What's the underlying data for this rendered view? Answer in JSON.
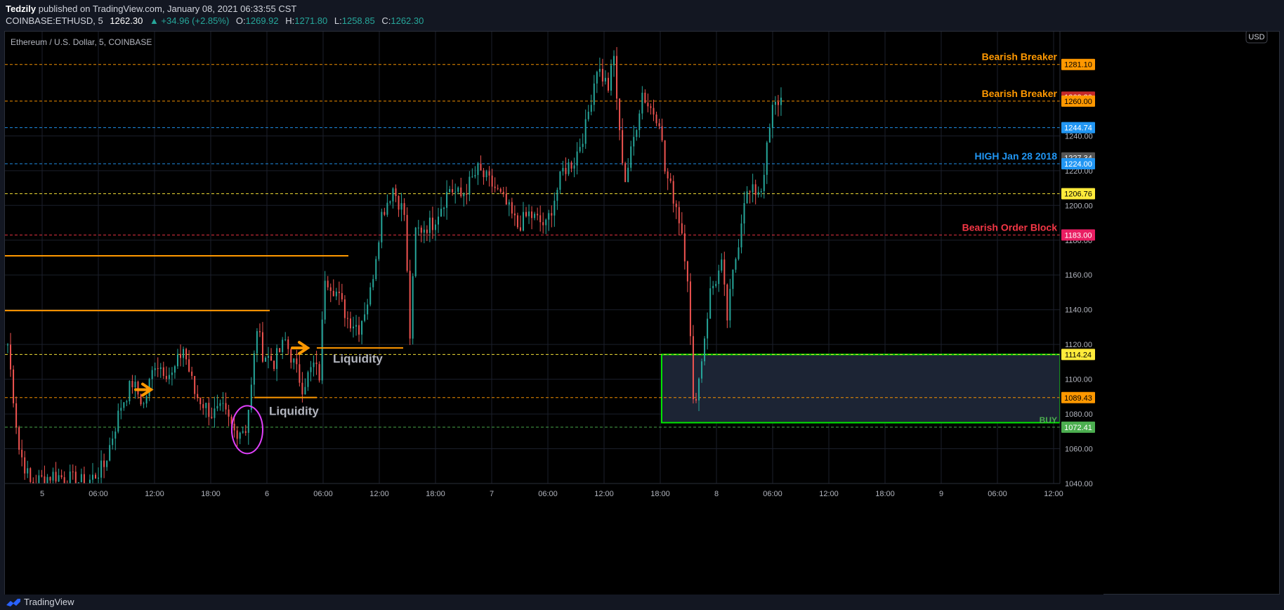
{
  "publish": {
    "author": "Tedzily",
    "text": " published on TradingView.com, January 08, 2021 06:33:55 CST"
  },
  "ohlc": {
    "symbol": "COINBASE:ETHUSD, 5",
    "last": "1262.30",
    "change": "▲ +34.96 (+2.85%)",
    "o_label": "O:",
    "o": "1269.92",
    "h_label": "H:",
    "h": "1271.80",
    "l_label": "L:",
    "l": "1258.85",
    "c_label": "C:",
    "c": "1262.30"
  },
  "footer": {
    "brand": "TradingView"
  },
  "colors": {
    "up": "#26a69a",
    "down": "#ef5350",
    "orange": "#ff9800",
    "blue": "#2196f3",
    "yellow": "#ffeb3b",
    "red": "#f23645",
    "green": "#4caf50",
    "magenta": "#e040fb",
    "zone_fill": "#1c2434",
    "zone_border": "#00e600",
    "grid": "#1b1f2b"
  },
  "chart_data": {
    "type": "candlestick",
    "title": "Ethereum / U.S. Dollar, 5, COINBASE",
    "currency": "USD",
    "ylim": [
      1040,
      1300
    ],
    "y_ticks": [
      1040,
      1060,
      1080,
      1100,
      1120,
      1140,
      1160,
      1180,
      1200,
      1220,
      1240
    ],
    "x_ticks": [
      "5",
      "06:00",
      "12:00",
      "18:00",
      "6",
      "06:00",
      "12:00",
      "18:00",
      "7",
      "06:00",
      "12:00",
      "18:00",
      "8",
      "06:00",
      "12:00",
      "18:00",
      "9",
      "06:00",
      "12:00"
    ],
    "price_path": [
      [
        0,
        1120
      ],
      [
        2,
        1060
      ],
      [
        4,
        1040
      ],
      [
        8,
        1045
      ],
      [
        14,
        1040
      ],
      [
        17,
        1050
      ],
      [
        20,
        1085
      ],
      [
        22,
        1098
      ],
      [
        24,
        1085
      ],
      [
        26,
        1110
      ],
      [
        29,
        1102
      ],
      [
        31,
        1118
      ],
      [
        33,
        1092
      ],
      [
        36,
        1080
      ],
      [
        38,
        1082
      ],
      [
        40,
        1070
      ],
      [
        42,
        1072
      ],
      [
        43,
        1095
      ],
      [
        44,
        1130
      ],
      [
        45,
        1115
      ],
      [
        47,
        1110
      ],
      [
        49,
        1122
      ],
      [
        52,
        1096
      ],
      [
        54,
        1108
      ],
      [
        55,
        1102
      ],
      [
        56,
        1160
      ],
      [
        58,
        1150
      ],
      [
        60,
        1135
      ],
      [
        62,
        1130
      ],
      [
        64,
        1150
      ],
      [
        66,
        1195
      ],
      [
        68,
        1210
      ],
      [
        70,
        1195
      ],
      [
        71,
        1125
      ],
      [
        72,
        1185
      ],
      [
        75,
        1190
      ],
      [
        78,
        1210
      ],
      [
        80,
        1205
      ],
      [
        83,
        1220
      ],
      [
        86,
        1210
      ],
      [
        88,
        1200
      ],
      [
        90,
        1188
      ],
      [
        92,
        1195
      ],
      [
        95,
        1188
      ],
      [
        98,
        1220
      ],
      [
        100,
        1226
      ],
      [
        102,
        1245
      ],
      [
        104,
        1280
      ],
      [
        106,
        1268
      ],
      [
        107,
        1285
      ],
      [
        108,
        1240
      ],
      [
        109,
        1215
      ],
      [
        110,
        1230
      ],
      [
        112,
        1265
      ],
      [
        113,
        1258
      ],
      [
        115,
        1250
      ],
      [
        116,
        1220
      ],
      [
        118,
        1200
      ],
      [
        119,
        1185
      ],
      [
        120,
        1160
      ],
      [
        121,
        1085
      ],
      [
        122,
        1100
      ],
      [
        124,
        1150
      ],
      [
        126,
        1165
      ],
      [
        127,
        1135
      ],
      [
        128,
        1160
      ],
      [
        129,
        1180
      ],
      [
        130,
        1205
      ],
      [
        133,
        1210
      ],
      [
        134,
        1232
      ],
      [
        135,
        1255
      ],
      [
        136,
        1260
      ],
      [
        137,
        1262.3
      ]
    ],
    "horizontal_levels": [
      {
        "price": 1281.1,
        "label": "Bearish Breaker",
        "color": "orange",
        "style": "dashed"
      },
      {
        "price": 1260.0,
        "label": "Bearish Breaker",
        "color": "orange",
        "style": "dashed"
      },
      {
        "price": 1244.74,
        "label": "",
        "color": "blue",
        "style": "dashed"
      },
      {
        "price": 1224.0,
        "label": "HIGH Jan 28 2018",
        "color": "blue",
        "style": "dashed"
      },
      {
        "price": 1206.76,
        "label": "",
        "color": "yellow",
        "style": "dashed"
      },
      {
        "price": 1183.0,
        "label": "Bearish Order Block",
        "color": "red",
        "style": "dashed"
      },
      {
        "price": 1114.24,
        "label": "",
        "color": "yellow",
        "style": "dashed"
      },
      {
        "price": 1089.43,
        "label": "",
        "color": "orange",
        "style": "dashed"
      },
      {
        "price": 1072.41,
        "label": "BUY",
        "color": "green",
        "style": "dashed"
      }
    ],
    "axis_badges": [
      {
        "price": 1281.1,
        "text": "1281.10",
        "bg": "#ff9800",
        "fg": "#000000"
      },
      {
        "price": 1262.3,
        "text": "1262.30",
        "bg": "#c62828",
        "fg": "#ffffff"
      },
      {
        "price": 1260.0,
        "text": "1260.00",
        "bg": "#ff9800",
        "fg": "#000000"
      },
      {
        "price": 1244.74,
        "text": "1244.74",
        "bg": "#2196f3",
        "fg": "#ffffff"
      },
      {
        "price": 1227.34,
        "text": "1227.34",
        "bg": "#555555",
        "fg": "#ffffff"
      },
      {
        "price": 1224.0,
        "text": "1224.00",
        "bg": "#2196f3",
        "fg": "#ffffff"
      },
      {
        "price": 1206.76,
        "text": "1206.76",
        "bg": "#ffeb3b",
        "fg": "#000000"
      },
      {
        "price": 1183.0,
        "text": "1183.00",
        "bg": "#e91e63",
        "fg": "#ffffff"
      },
      {
        "price": 1114.24,
        "text": "1114.24",
        "bg": "#ffeb3b",
        "fg": "#000000"
      },
      {
        "price": 1089.43,
        "text": "1089.43",
        "bg": "#ff9800",
        "fg": "#000000"
      },
      {
        "price": 1072.41,
        "text": "1072.41",
        "bg": "#4caf50",
        "fg": "#ffffff"
      }
    ],
    "buy_zone": {
      "price_top": 1114.24,
      "price_bottom": 1075,
      "label": "BUY"
    },
    "annotations": [
      {
        "text": "Liquidity",
        "price": 1088
      },
      {
        "text": "Liquidity",
        "price": 1114
      }
    ]
  }
}
